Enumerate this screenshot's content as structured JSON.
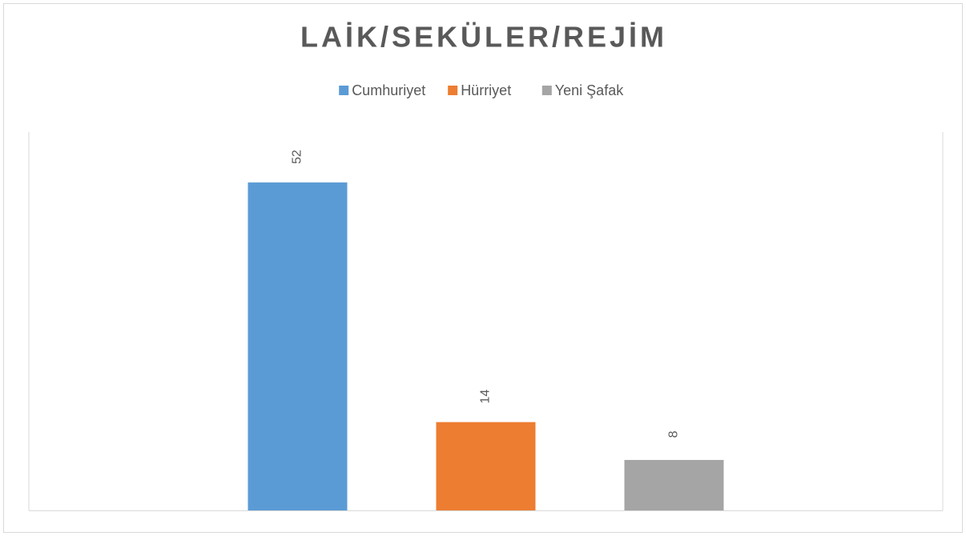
{
  "chart_data": {
    "type": "bar",
    "title": "LAİK/SEKÜLER/REJİM",
    "categories": [
      null
    ],
    "series": [
      {
        "name": "Cumhuriyet",
        "color": "#5b9bd5",
        "values": [
          52
        ]
      },
      {
        "name": "Hürriyet",
        "color": "#ed7d31",
        "values": [
          14
        ]
      },
      {
        "name": "Yeni Şafak",
        "color": "#a5a5a5",
        "values": [
          8
        ]
      }
    ],
    "ylim": [
      0,
      60
    ],
    "legend": "top"
  }
}
